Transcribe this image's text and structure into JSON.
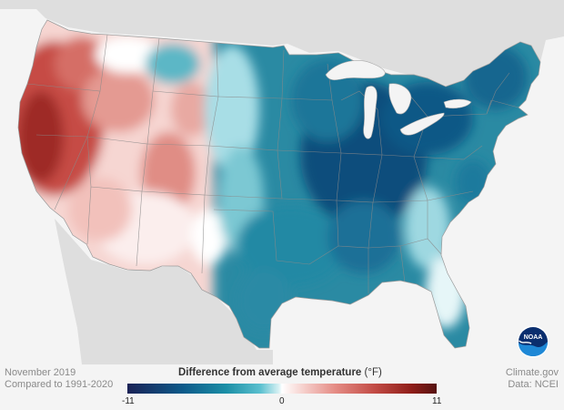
{
  "map": {
    "region": "Contiguous United States",
    "colors": {
      "background": "#f4f4f4",
      "land_outside": "#dedede",
      "water": "#f4f4f4",
      "state_borders": "#8a8a8a",
      "cold_dark": "#0a4f7e",
      "cold_mid": "#1c8ea5",
      "cold_light": "#8fd4de",
      "neutral": "#ffffff",
      "warm_light": "#f3c4bf",
      "warm_mid": "#dd7b73",
      "warm_dark": "#a8302b"
    }
  },
  "caption": {
    "date_line1": "November 2019",
    "date_line2": "Compared to 1991-2020"
  },
  "legend": {
    "title": "Difference from average temperature",
    "unit": "(°F)",
    "min_label": "-11",
    "mid_label": "0",
    "max_label": "11",
    "range": [
      -11,
      11
    ]
  },
  "credits": {
    "line1": "Climate.gov",
    "line2": "Data: NCEI"
  },
  "logo": {
    "text": "NOAA",
    "icon": "noaa-logo-icon"
  }
}
